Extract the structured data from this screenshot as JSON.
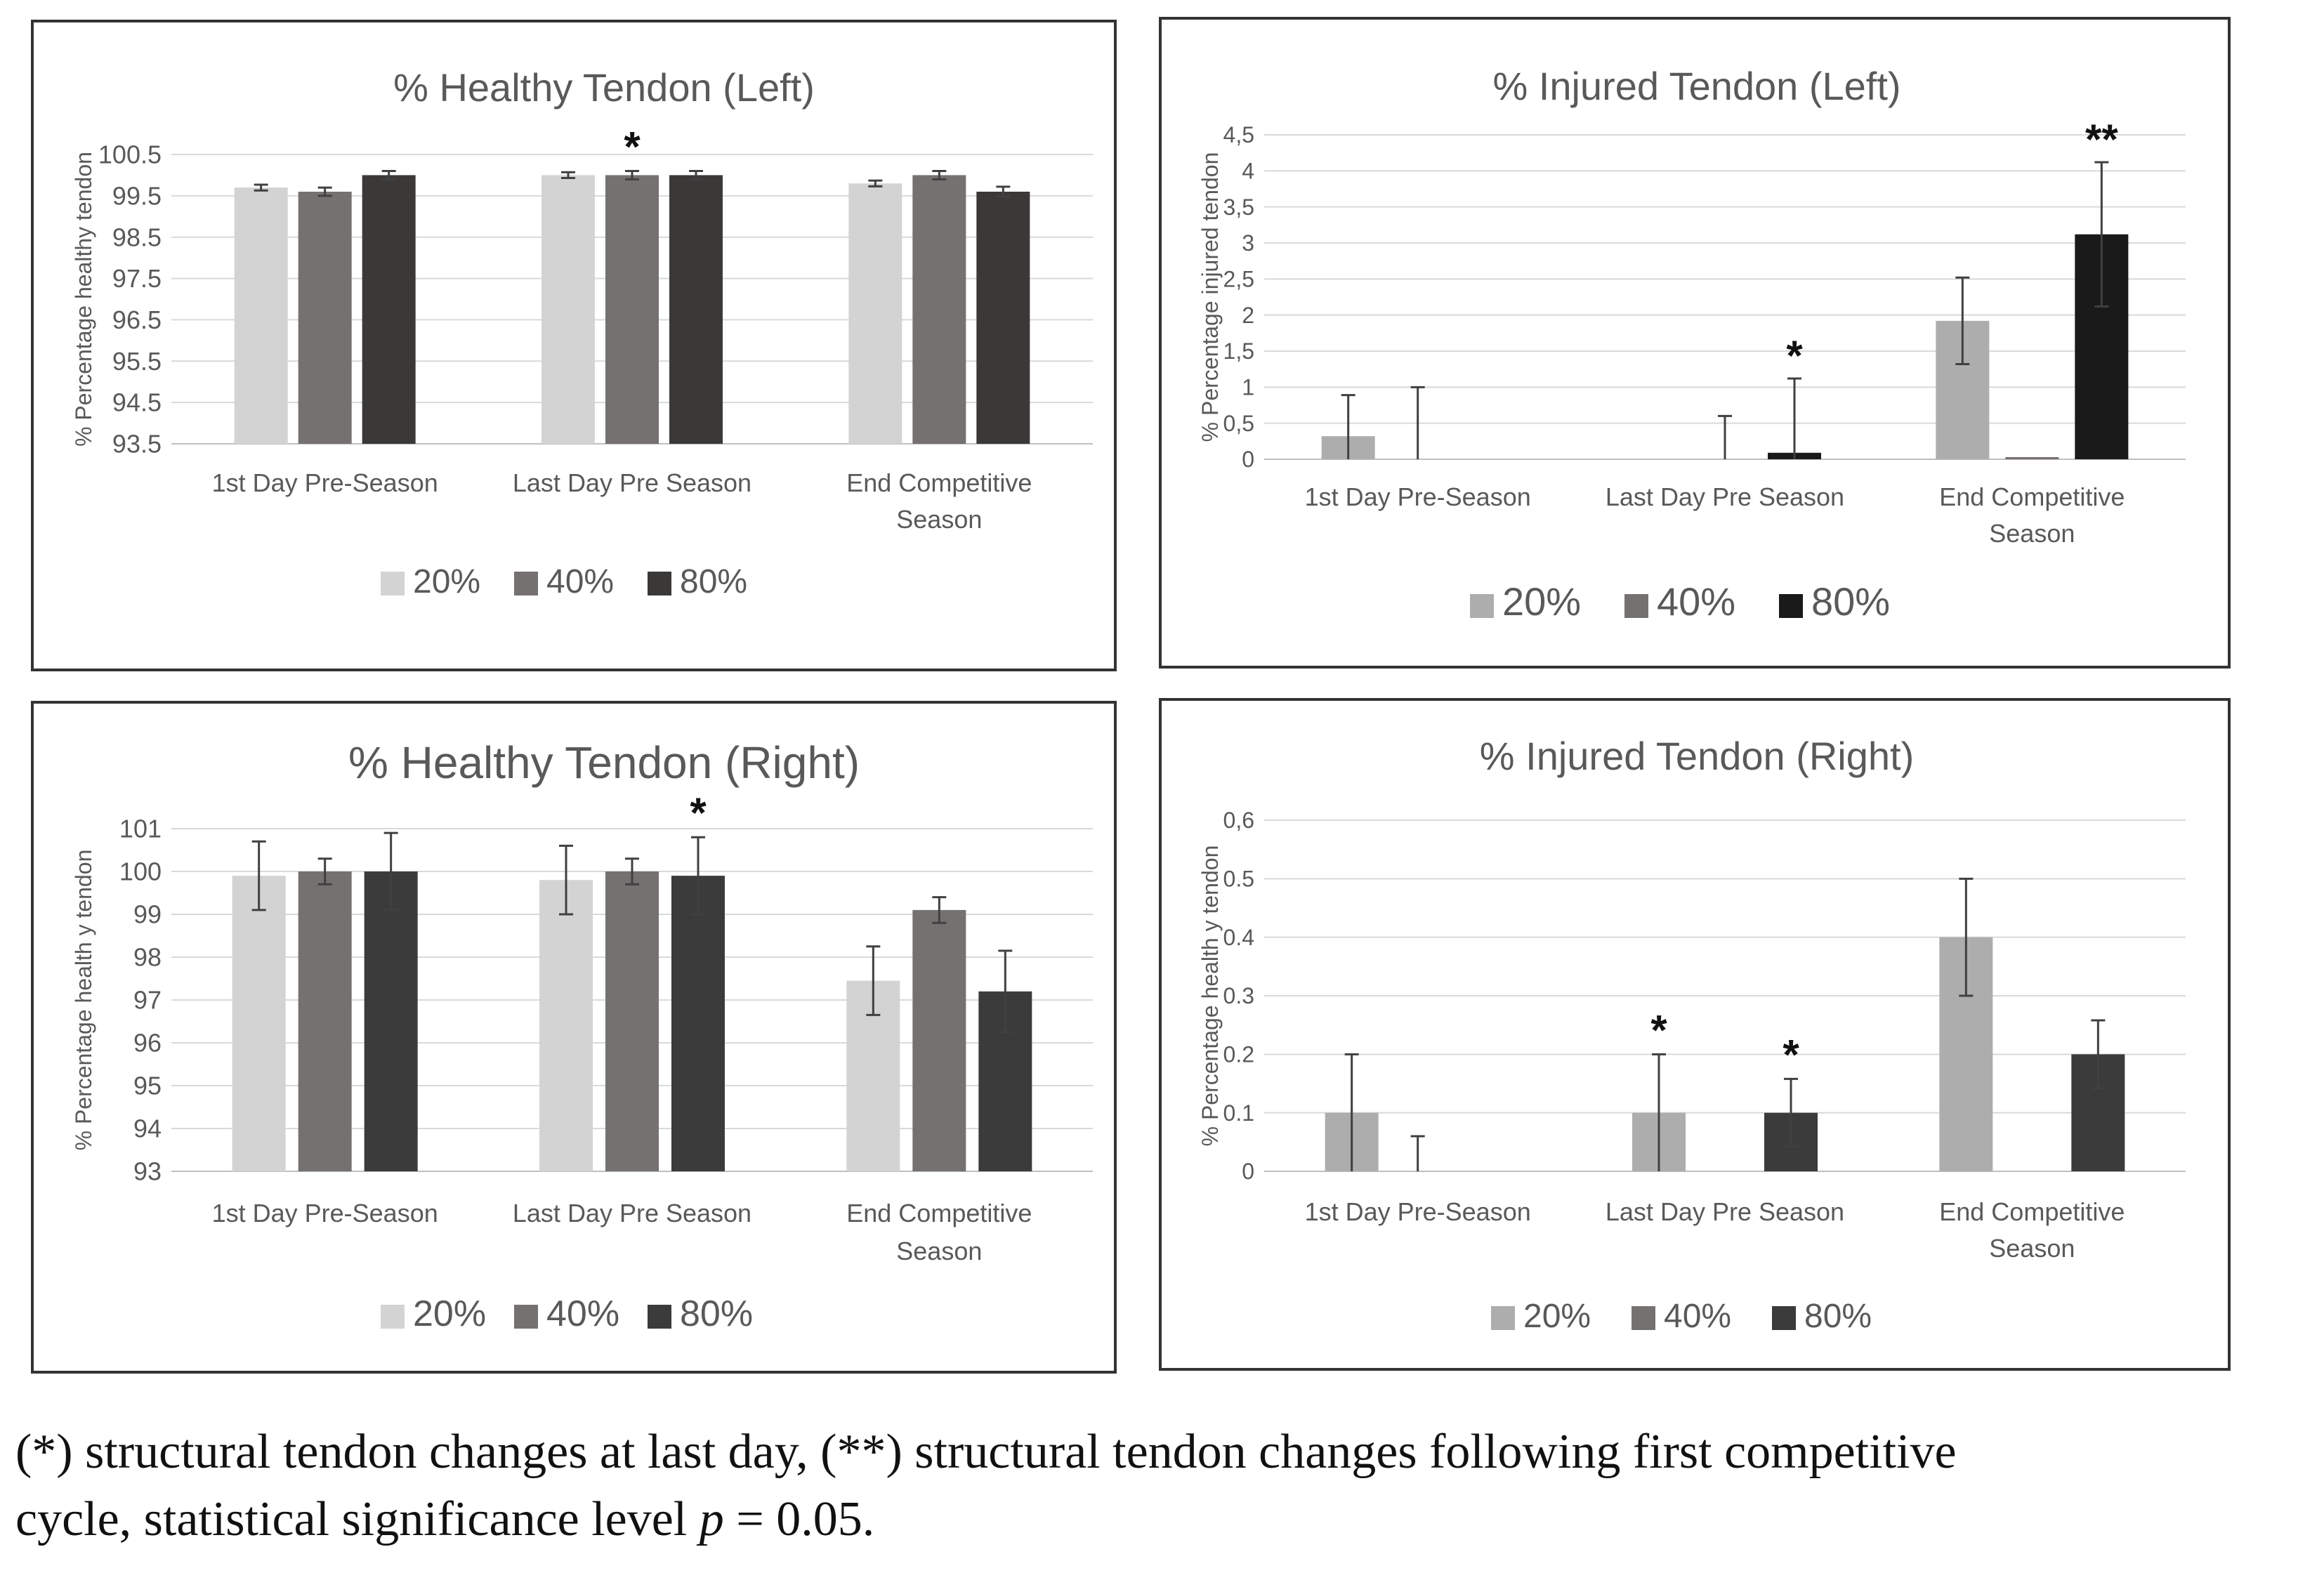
{
  "chart_data": [
    {
      "type": "bar",
      "title": "% Healthy Tendon  (Left)",
      "ylabel": "% Percentage healthy tendon",
      "xlabel": "",
      "categories": [
        "1st Day Pre-Season",
        "Last Day Pre Season",
        "End Competitive Season"
      ],
      "category_lines": [
        [
          "1st Day Pre-Season"
        ],
        [
          "Last Day Pre Season"
        ],
        [
          "End Competitive",
          "Season"
        ]
      ],
      "ylim": [
        93.5,
        100.5
      ],
      "yticks": [
        93.5,
        94.5,
        95.5,
        96.5,
        97.5,
        98.5,
        99.5,
        100.5
      ],
      "ytick_labels": [
        "93.5",
        "94.5",
        "95.5",
        "96.5",
        "97.5",
        "98.5",
        "99.5",
        "100.5"
      ],
      "series": [
        {
          "name": "20%",
          "values": [
            99.7,
            100.0,
            99.8
          ],
          "errors": [
            0.07,
            0.07,
            0.07
          ]
        },
        {
          "name": "40%",
          "values": [
            99.6,
            100.0,
            100.0
          ],
          "errors": [
            0.1,
            0.1,
            0.1
          ]
        },
        {
          "name": "80%",
          "values": [
            100.0,
            100.0,
            99.6
          ],
          "errors": [
            0.1,
            0.1,
            0.12
          ]
        }
      ],
      "colors": [
        "#d3d3d3",
        "#767171",
        "#3b3838"
      ],
      "legend": [
        "20%",
        "40%",
        "80%"
      ],
      "legend_position": "bottom",
      "annotations": [
        {
          "text": "*",
          "category": 1,
          "series": 1,
          "value": 100.1
        }
      ],
      "grid": true
    },
    {
      "type": "bar",
      "title": "% Injured Tendon  (Left)",
      "ylabel": "% Percentage injured tendon",
      "xlabel": "",
      "categories": [
        "1st Day Pre-Season",
        "Last Day Pre Season",
        "End Competitive Season"
      ],
      "category_lines": [
        [
          "1st Day Pre-Season"
        ],
        [
          "Last Day Pre Season"
        ],
        [
          "End Competitive",
          "Season"
        ]
      ],
      "ylim": [
        0,
        4.5
      ],
      "yticks": [
        0,
        0.5,
        1,
        1.5,
        2,
        2.5,
        3,
        3.5,
        4,
        4.5
      ],
      "ytick_labels": [
        "0",
        "0,5",
        "1",
        "1,5",
        "2",
        "2,5",
        "3",
        "3,5",
        "4",
        "4,5"
      ],
      "series": [
        {
          "name": "20%",
          "values": [
            0.32,
            0,
            1.92
          ],
          "errors": [
            0.57,
            0,
            0.6
          ]
        },
        {
          "name": "40%",
          "values": [
            0,
            0,
            0.03
          ],
          "errors": [
            1.0,
            0.6,
            0
          ]
        },
        {
          "name": "80%",
          "values": [
            0,
            0.09,
            3.12
          ],
          "errors": [
            0,
            1.03,
            1.0
          ]
        }
      ],
      "colors": [
        "#adadad",
        "#767171",
        "#1a1a1a"
      ],
      "legend": [
        "20%",
        "40%",
        "80%"
      ],
      "legend_position": "bottom",
      "annotations": [
        {
          "text": "*",
          "category": 1,
          "series": 2,
          "value": 1.1
        },
        {
          "text": "**",
          "category": 2,
          "series": 2,
          "value": 4.1
        }
      ],
      "grid": true
    },
    {
      "type": "bar",
      "title": "% Healthy Tendon  (Right)",
      "ylabel": "% Percentage health y tendon",
      "xlabel": "",
      "categories": [
        "1st Day Pre-Season",
        "Last Day Pre Season",
        "End Competitive Season"
      ],
      "category_lines": [
        [
          "1st Day Pre-Season"
        ],
        [
          "Last Day Pre Season"
        ],
        [
          "End Competitive",
          "Season"
        ]
      ],
      "ylim": [
        93,
        101
      ],
      "yticks": [
        93,
        94,
        95,
        96,
        97,
        98,
        99,
        100,
        101
      ],
      "ytick_labels": [
        "93",
        "94",
        "95",
        "96",
        "97",
        "98",
        "99",
        "100",
        "101"
      ],
      "series": [
        {
          "name": "20%",
          "values": [
            99.9,
            99.8,
            97.45
          ],
          "errors": [
            0.8,
            0.8,
            0.8
          ]
        },
        {
          "name": "40%",
          "values": [
            100.0,
            100.0,
            99.1
          ],
          "errors": [
            0.3,
            0.3,
            0.3
          ]
        },
        {
          "name": "80%",
          "values": [
            100.0,
            99.9,
            97.2
          ],
          "errors": [
            0.9,
            0.9,
            0.95
          ]
        }
      ],
      "colors": [
        "#d3d3d3",
        "#767171",
        "#3b3b3b"
      ],
      "legend": [
        "20%",
        "40%",
        "80%"
      ],
      "legend_position": "bottom",
      "annotations": [
        {
          "text": "*",
          "category": 1,
          "series": 2,
          "value": 100.8
        }
      ],
      "grid": true
    },
    {
      "type": "bar",
      "title": "% Injured Tendon  (Right)",
      "ylabel": "% Percentage health y tendon",
      "xlabel": "",
      "categories": [
        "1st Day Pre-Season",
        "Last Day Pre Season",
        "End Competitive Season"
      ],
      "category_lines": [
        [
          "1st Day Pre-Season"
        ],
        [
          "Last Day Pre Season"
        ],
        [
          "End Competitive",
          "Season"
        ]
      ],
      "ylim": [
        0,
        0.6
      ],
      "yticks": [
        0,
        0.1,
        0.2,
        0.3,
        0.4,
        0.5,
        0.6
      ],
      "ytick_labels": [
        "0",
        "0.1",
        "0.2",
        "0.3",
        "0.4",
        "0.5",
        "0,6"
      ],
      "series": [
        {
          "name": "20%",
          "values": [
            0.1,
            0.1,
            0.4
          ],
          "errors": [
            0.1,
            0.1,
            0.1
          ]
        },
        {
          "name": "40%",
          "values": [
            0,
            0,
            0
          ],
          "errors": [
            0.06,
            0,
            0
          ]
        },
        {
          "name": "80%",
          "values": [
            0,
            0.1,
            0.2
          ],
          "errors": [
            0,
            0.058,
            0.058
          ]
        }
      ],
      "colors": [
        "#adadad",
        "#767171",
        "#3b3b3b"
      ],
      "legend": [
        "20%",
        "40%",
        "80%"
      ],
      "legend_position": "bottom",
      "annotations": [
        {
          "text": "*",
          "category": 1,
          "series": 0,
          "value": 0.2
        },
        {
          "text": "*",
          "category": 1,
          "series": 2,
          "value": 0.158
        }
      ],
      "grid": true
    }
  ],
  "caption": {
    "line1": "(*) structural tendon changes at last day, (**) structural tendon changes following first competitive",
    "line2_a": "cycle, statistical significance level ",
    "line2_p": "p",
    "line2_b": " = 0.05."
  }
}
